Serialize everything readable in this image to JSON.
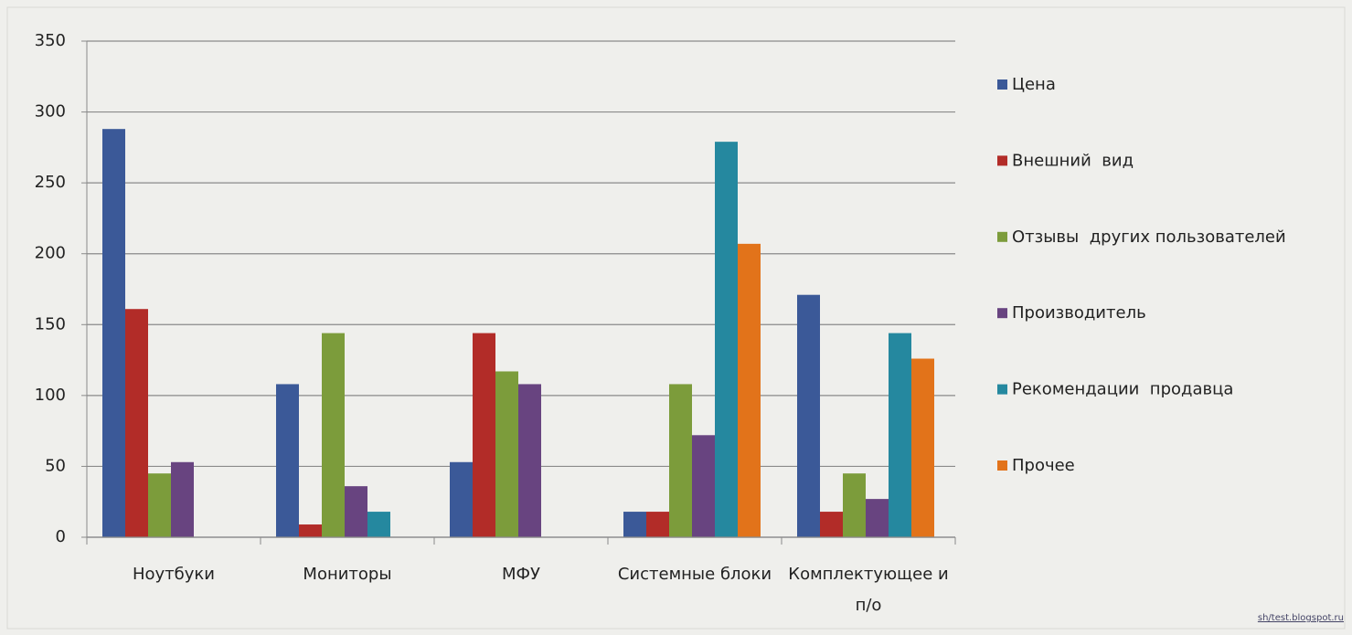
{
  "chart_data": {
    "type": "bar",
    "categories": [
      "Ноутбуки",
      "Мониторы",
      "МФУ",
      "Системные блоки",
      "Комплектующее и п/о"
    ],
    "series": [
      {
        "name": "Цена",
        "color": "#3b5998",
        "values": [
          288,
          108,
          53,
          18,
          171
        ]
      },
      {
        "name": "Внешний  вид",
        "color": "#b22c28",
        "values": [
          161,
          9,
          144,
          18,
          18
        ]
      },
      {
        "name": "Отзывы  других пользователей",
        "color": "#7c9c3b",
        "values": [
          45,
          144,
          117,
          108,
          45
        ]
      },
      {
        "name": "Производитель",
        "color": "#684480",
        "values": [
          53,
          36,
          108,
          72,
          27
        ]
      },
      {
        "name": "Рекомендации  продавца",
        "color": "#25889f",
        "values": [
          0,
          18,
          0,
          279,
          144
        ]
      },
      {
        "name": "Прочее",
        "color": "#e2731a",
        "values": [
          0,
          0,
          0,
          207,
          126
        ]
      }
    ],
    "ylim": [
      0,
      350
    ],
    "yticks": [
      0,
      50,
      100,
      150,
      200,
      250,
      300,
      350
    ],
    "grid": true,
    "legend": "right",
    "watermark": "sh/test.blogspot.ru"
  }
}
